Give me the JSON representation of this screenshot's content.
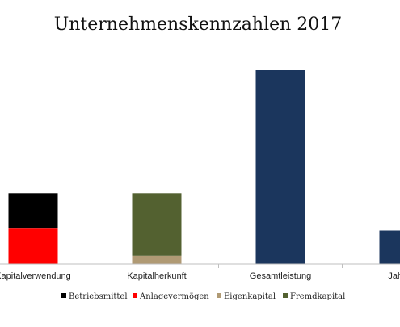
{
  "chart_data": {
    "type": "bar",
    "stacked": true,
    "title": "Unternehmenskennzahlen 2017",
    "xlabel": "",
    "ylabel": "",
    "ylim": [
      0,
      2600
    ],
    "grid": false,
    "legend_position": "bottom",
    "categories": [
      "Kapitalverwendung",
      "Kapitalherkunft",
      "Gesamtleistung",
      "Jahresü"
    ],
    "series": [
      {
        "name": "Anlagevermögen",
        "color": "#ff0000",
        "values": [
          475,
          0,
          0,
          0
        ]
      },
      {
        "name": "Betriebsmittel",
        "color": "#000000",
        "values": [
          475,
          0,
          0,
          0
        ]
      },
      {
        "name": "Eigenkapital",
        "color": "#b09a74",
        "values": [
          0,
          110,
          0,
          0
        ]
      },
      {
        "name": "Fremdkapital",
        "color": "#536130",
        "values": [
          0,
          840,
          0,
          0
        ]
      },
      {
        "name": "",
        "color": "#1b365d",
        "values": [
          0,
          0,
          2600,
          450
        ]
      }
    ],
    "legend": [
      {
        "name": "Betriebsmittel",
        "color": "#000000"
      },
      {
        "name": "Anlagevermögen",
        "color": "#ff0000"
      },
      {
        "name": "Eigenkapital",
        "color": "#b09a74"
      },
      {
        "name": "Fremdkapital",
        "color": "#536130"
      }
    ]
  }
}
